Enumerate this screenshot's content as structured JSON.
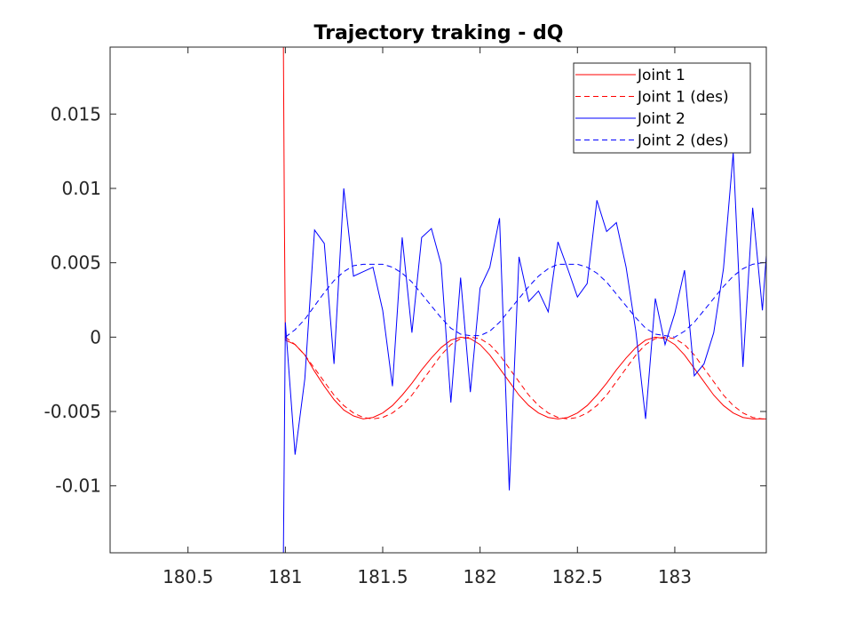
{
  "chart_data": {
    "type": "line",
    "title": "Trajectory traking - dQ",
    "xlabel": "",
    "ylabel": "",
    "xlim": [
      180.1,
      183.47
    ],
    "ylim": [
      -0.0145,
      0.0195
    ],
    "xticks": [
      180.5,
      181,
      181.5,
      182,
      182.5,
      183
    ],
    "xtick_labels": [
      "180.5",
      "181",
      "181.5",
      "182",
      "182.5",
      "183"
    ],
    "yticks": [
      -0.01,
      -0.005,
      0,
      0.005,
      0.01,
      0.015
    ],
    "ytick_labels": [
      "-0.01",
      "-0.005",
      "0",
      "0.005",
      "0.01",
      "0.015"
    ],
    "grid": false,
    "legend_position": "top-right",
    "series": [
      {
        "name": "Joint 1",
        "color": "#ff0000",
        "style": "solid",
        "x": [
          180.99,
          180.995,
          181.0,
          181.05,
          181.1,
          181.15,
          181.2,
          181.25,
          181.3,
          181.35,
          181.4,
          181.45,
          181.5,
          181.55,
          181.6,
          181.65,
          181.7,
          181.75,
          181.8,
          181.85,
          181.9,
          181.95,
          182.0,
          182.05,
          182.1,
          182.15,
          182.2,
          182.25,
          182.3,
          182.35,
          182.4,
          182.45,
          182.5,
          182.55,
          182.6,
          182.65,
          182.7,
          182.75,
          182.8,
          182.85,
          182.9,
          182.95,
          183.0,
          183.05,
          183.1,
          183.15,
          183.2,
          183.25,
          183.3,
          183.35,
          183.4,
          183.45,
          183.47
        ],
        "y": [
          0.0195,
          0.008,
          -0.0002,
          -0.0005,
          -0.0012,
          -0.0023,
          -0.0033,
          -0.0042,
          -0.0049,
          -0.0053,
          -0.0055,
          -0.0054,
          -0.0051,
          -0.0046,
          -0.0039,
          -0.0031,
          -0.0022,
          -0.0014,
          -0.0007,
          -0.0002,
          0.0,
          -0.0001,
          -0.0005,
          -0.0012,
          -0.0021,
          -0.003,
          -0.0039,
          -0.0046,
          -0.0051,
          -0.0054,
          -0.0055,
          -0.0054,
          -0.0051,
          -0.0046,
          -0.0039,
          -0.0031,
          -0.0022,
          -0.0014,
          -0.0007,
          -0.0002,
          0.0,
          -0.0001,
          -0.0005,
          -0.0012,
          -0.0021,
          -0.003,
          -0.0039,
          -0.0046,
          -0.0051,
          -0.0054,
          -0.0055,
          -0.0055,
          -0.0055
        ]
      },
      {
        "name": "Joint 1 (des)",
        "color": "#ff0000",
        "style": "dashed",
        "x": [
          181.0,
          181.05,
          181.1,
          181.15,
          181.2,
          181.25,
          181.3,
          181.35,
          181.4,
          181.45,
          181.5,
          181.55,
          181.6,
          181.65,
          181.7,
          181.75,
          181.8,
          181.85,
          181.9,
          181.95,
          182.0,
          182.05,
          182.1,
          182.15,
          182.2,
          182.25,
          182.3,
          182.35,
          182.4,
          182.45,
          182.5,
          182.55,
          182.6,
          182.65,
          182.7,
          182.75,
          182.8,
          182.85,
          182.9,
          182.95,
          183.0,
          183.05,
          183.1,
          183.15,
          183.2,
          183.25,
          183.3,
          183.35,
          183.4,
          183.45,
          183.47
        ],
        "y": [
          0.0,
          -0.0005,
          -0.0012,
          -0.0021,
          -0.003,
          -0.0039,
          -0.0046,
          -0.0051,
          -0.0054,
          -0.0055,
          -0.0054,
          -0.0051,
          -0.0046,
          -0.0039,
          -0.003,
          -0.0021,
          -0.0012,
          -0.0005,
          -0.0001,
          0.0,
          -0.0001,
          -0.0005,
          -0.0012,
          -0.0021,
          -0.003,
          -0.0039,
          -0.0046,
          -0.0051,
          -0.0054,
          -0.0055,
          -0.0054,
          -0.0051,
          -0.0046,
          -0.0039,
          -0.003,
          -0.0021,
          -0.0012,
          -0.0005,
          -0.0001,
          0.0,
          -0.0001,
          -0.0005,
          -0.0012,
          -0.0021,
          -0.003,
          -0.0039,
          -0.0046,
          -0.0051,
          -0.0054,
          -0.0055,
          -0.0055
        ]
      },
      {
        "name": "Joint 2",
        "color": "#0000ff",
        "style": "solid",
        "x": [
          180.99,
          181.0,
          181.05,
          181.1,
          181.15,
          181.2,
          181.25,
          181.3,
          181.35,
          181.4,
          181.45,
          181.5,
          181.55,
          181.6,
          181.65,
          181.7,
          181.75,
          181.8,
          181.85,
          181.9,
          181.95,
          182.0,
          182.05,
          182.1,
          182.15,
          182.2,
          182.25,
          182.3,
          182.35,
          182.4,
          182.45,
          182.5,
          182.55,
          182.6,
          182.65,
          182.7,
          182.75,
          182.8,
          182.85,
          182.9,
          182.95,
          183.0,
          183.05,
          183.1,
          183.15,
          183.2,
          183.25,
          183.3,
          183.35,
          183.4,
          183.45,
          183.47
        ],
        "y": [
          -0.0145,
          0.001,
          -0.0079,
          -0.0028,
          0.0072,
          0.0063,
          -0.0018,
          0.01,
          0.0041,
          0.0044,
          0.0047,
          0.0018,
          -0.0033,
          0.0067,
          0.0003,
          0.0067,
          0.0073,
          0.0049,
          -0.0044,
          0.004,
          -0.0037,
          0.0033,
          0.0047,
          0.008,
          -0.0103,
          0.0054,
          0.0024,
          0.0031,
          0.0017,
          0.0064,
          0.0046,
          0.0027,
          0.0036,
          0.0092,
          0.0071,
          0.0077,
          0.0047,
          0.0004,
          -0.0055,
          0.0026,
          -0.0005,
          0.0016,
          0.0045,
          -0.0026,
          -0.0018,
          0.0003,
          0.0046,
          0.0124,
          -0.002,
          0.0087,
          0.0018,
          0.0055
        ]
      },
      {
        "name": "Joint 2 (des)",
        "color": "#0000ff",
        "style": "dashed",
        "x": [
          181.0,
          181.05,
          181.1,
          181.15,
          181.2,
          181.25,
          181.3,
          181.35,
          181.4,
          181.45,
          181.5,
          181.55,
          181.6,
          181.65,
          181.7,
          181.75,
          181.8,
          181.85,
          181.9,
          181.95,
          182.0,
          182.05,
          182.1,
          182.15,
          182.2,
          182.25,
          182.3,
          182.35,
          182.4,
          182.45,
          182.5,
          182.55,
          182.6,
          182.65,
          182.7,
          182.75,
          182.8,
          182.85,
          182.9,
          182.95,
          183.0,
          183.05,
          183.1,
          183.15,
          183.2,
          183.25,
          183.3,
          183.35,
          183.4,
          183.45,
          183.47
        ],
        "y": [
          0.0,
          0.0005,
          0.0012,
          0.0021,
          0.003,
          0.0038,
          0.0044,
          0.0048,
          0.0049,
          0.0049,
          0.0049,
          0.0047,
          0.0043,
          0.0037,
          0.0029,
          0.0021,
          0.0013,
          0.0006,
          0.0002,
          0.0001,
          0.0001,
          0.0004,
          0.001,
          0.0018,
          0.0026,
          0.0034,
          0.0041,
          0.0046,
          0.0049,
          0.0049,
          0.0049,
          0.0047,
          0.0043,
          0.0037,
          0.0029,
          0.0021,
          0.0013,
          0.0006,
          0.0002,
          0.0001,
          0.0,
          0.0004,
          0.001,
          0.0018,
          0.0026,
          0.0034,
          0.0041,
          0.0046,
          0.0049,
          0.005,
          0.005
        ]
      }
    ]
  }
}
